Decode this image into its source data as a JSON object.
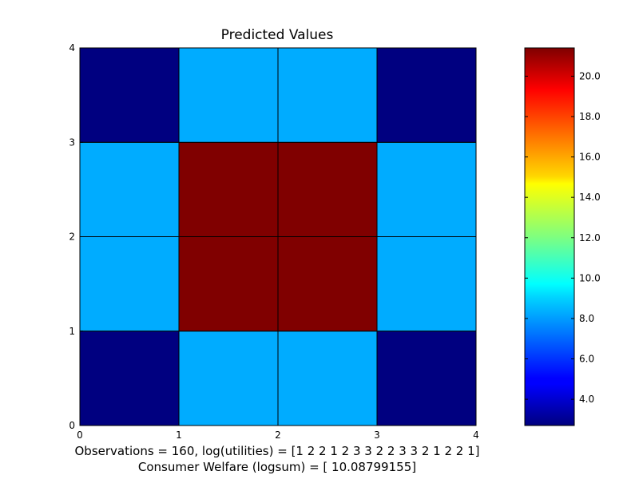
{
  "chart_data": [
    {
      "type": "heatmap",
      "title": "Predicted Values",
      "x_ticks": [
        "0",
        "1",
        "2",
        "3",
        "4"
      ],
      "y_ticks": [
        "0",
        "1",
        "2",
        "3",
        "4"
      ],
      "xlim": [
        0,
        4
      ],
      "ylim": [
        0,
        4
      ],
      "rows_bottom_to_top": [
        [
          2.7,
          8.2,
          8.2,
          2.7
        ],
        [
          8.2,
          21.4,
          21.4,
          8.2
        ],
        [
          8.2,
          21.4,
          21.4,
          8.2
        ],
        [
          2.7,
          8.2,
          8.2,
          2.7
        ]
      ],
      "grid": true,
      "colormap": "jet",
      "colorbar": {
        "range": [
          2.7,
          21.4
        ],
        "ticks": [
          "4.0",
          "6.0",
          "8.0",
          "10.0",
          "12.0",
          "14.0",
          "16.0",
          "18.0",
          "20.0"
        ]
      }
    }
  ],
  "captions": {
    "line1": "Observations = 160, log(utilities) = [1 2 2 1 2 3 3 2 2 3 3 2 1 2 2 1]",
    "line2": "Consumer Welfare (logsum) = [ 10.08799155]"
  }
}
